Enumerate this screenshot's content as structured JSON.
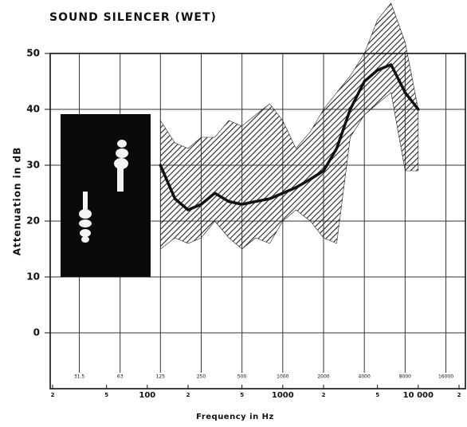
{
  "chart_data": {
    "type": "line",
    "title": "SOUND SILENCER (WET)",
    "x_label": "Frequency in Hz",
    "y_label": "Attenuation in dB",
    "x": [
      125,
      160,
      200,
      250,
      315,
      400,
      500,
      630,
      800,
      1000,
      1250,
      1600,
      2000,
      2500,
      3150,
      4000,
      5000,
      6300,
      8000,
      10000
    ],
    "values": [
      30,
      24,
      22,
      23,
      25,
      23.5,
      23,
      23.5,
      24,
      25,
      26,
      27.5,
      29,
      33,
      40,
      45,
      47,
      48,
      43,
      40
    ],
    "upper": [
      38,
      34,
      33,
      35,
      35,
      38,
      37,
      39,
      41,
      38,
      33,
      36,
      40,
      43,
      46,
      50,
      56,
      59,
      52,
      40
    ],
    "lower": [
      15,
      17,
      16,
      17,
      20,
      17,
      15,
      17,
      16,
      20,
      22,
      20,
      17,
      16,
      35,
      39,
      41,
      43,
      29,
      29
    ],
    "color": "#111111",
    "band_color": "#222222",
    "log_x": true,
    "xlim": [
      20,
      20000
    ],
    "ylim": [
      -10,
      50
    ],
    "yticks": [
      0,
      10,
      20,
      30,
      40,
      50
    ],
    "xticks": [
      {
        "value": 20,
        "label": "2"
      },
      {
        "value": 50,
        "label": "5"
      },
      100,
      {
        "value": 200,
        "label": "2"
      },
      {
        "value": 500,
        "label": "5"
      },
      1000,
      {
        "value": 2000,
        "label": "2"
      },
      {
        "value": 5000,
        "label": "5"
      },
      {
        "value": 10000,
        "label": "10 000"
      },
      {
        "value": 20000,
        "label": "2"
      }
    ],
    "octave_ticks": [
      31.5,
      63,
      125,
      250,
      500,
      1000,
      2000,
      4000,
      8000,
      16000
    ],
    "grid": true
  }
}
